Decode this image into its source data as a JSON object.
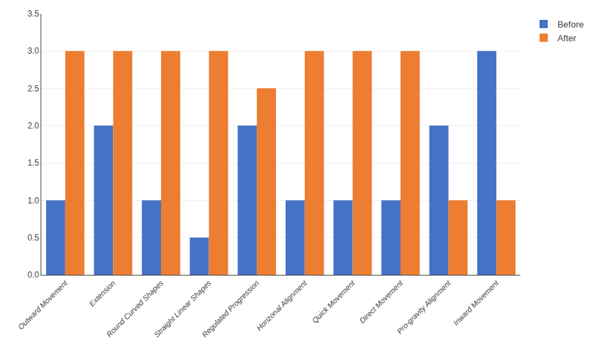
{
  "chart_data": {
    "type": "bar",
    "categories": [
      "Outward Movement",
      "Extension",
      "Round Curved Shapes",
      "Straight Linear Shapes",
      "Regulated Progression",
      "Horizonal Alignment",
      "Quick Movement",
      "Direct Movement",
      "Pro-gravity Alignment",
      "Inward Movement"
    ],
    "series": [
      {
        "name": "Before",
        "color": "#4472C4",
        "values": [
          1,
          2,
          1,
          0.5,
          2,
          1,
          1,
          1,
          2,
          3
        ]
      },
      {
        "name": "After",
        "color": "#ED7D31",
        "values": [
          3,
          3,
          3,
          3,
          2.5,
          3,
          3,
          3,
          1,
          1
        ]
      }
    ],
    "ylim": [
      0,
      3.5
    ],
    "yticks": [
      {
        "value": 0,
        "label": "0.0"
      },
      0.5,
      {
        "value": 1,
        "label": "1.0"
      },
      1.5,
      {
        "value": 2,
        "label": "2.0"
      },
      2.5,
      {
        "value": 3,
        "label": "3.0"
      },
      3.5
    ],
    "grid": true,
    "legend": "upper right"
  }
}
